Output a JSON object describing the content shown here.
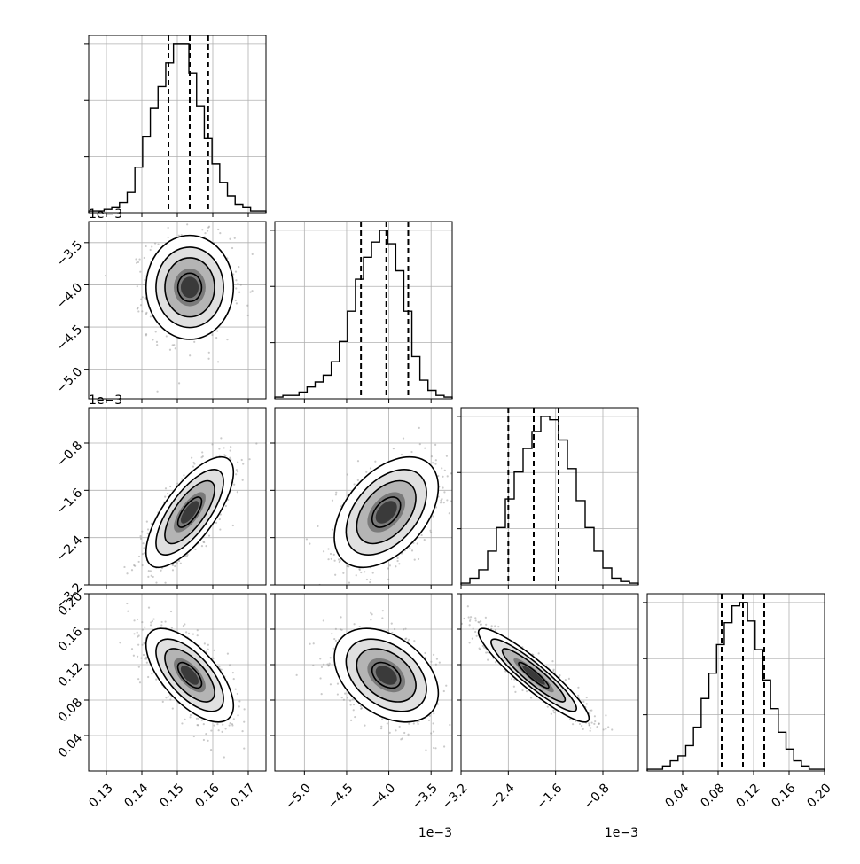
{
  "chart_data": {
    "type": "corner",
    "n_params": 4,
    "params": [
      {
        "id": "p0",
        "scale_label": "",
        "range": [
          0.125,
          0.175
        ],
        "ticks": [
          0.13,
          0.14,
          0.15,
          0.16,
          0.17
        ],
        "tick_labels": [
          "0.13",
          "0.14",
          "0.15",
          "0.16",
          "0.17"
        ],
        "quantiles": [
          0.1475,
          0.1535,
          0.1587
        ]
      },
      {
        "id": "p1",
        "scale_label": "1e−3",
        "range": [
          -5.35,
          -3.25
        ],
        "ticks": [
          -5.0,
          -4.5,
          -4.0,
          -3.5
        ],
        "tick_labels": [
          "−5.0",
          "−4.5",
          "−4.0",
          "−3.5"
        ],
        "quantiles": [
          -4.33,
          -4.03,
          -3.77
        ]
      },
      {
        "id": "p2",
        "scale_label": "1e−3",
        "range": [
          -3.2,
          -0.2
        ],
        "ticks": [
          -3.2,
          -2.4,
          -1.6,
          -0.8
        ],
        "tick_labels": [
          "−3.2",
          "−2.4",
          "−1.6",
          "−0.8"
        ],
        "quantiles": [
          -2.4,
          -1.97,
          -1.55
        ]
      },
      {
        "id": "p3",
        "scale_label": "",
        "range": [
          0.0,
          0.2
        ],
        "ticks": [
          0.04,
          0.08,
          0.12,
          0.16,
          0.2
        ],
        "tick_labels": [
          "0.04",
          "0.08",
          "0.12",
          "0.16",
          "0.20"
        ],
        "quantiles": [
          0.084,
          0.108,
          0.132
        ]
      }
    ],
    "hist_y_ticks": [
      0.3333,
      0.6667,
      1.0
    ],
    "histograms": [
      {
        "param": 0,
        "counts": [
          1,
          1,
          2,
          3,
          6,
          12,
          27,
          45,
          62,
          75,
          89,
          100,
          100,
          83,
          63,
          44,
          29,
          18,
          10,
          5,
          3,
          1,
          1
        ]
      },
      {
        "param": 1,
        "counts": [
          1,
          2,
          2,
          4,
          7,
          10,
          14,
          22,
          34,
          52,
          71,
          84,
          93,
          100,
          92,
          76,
          52,
          25,
          11,
          5,
          2,
          1
        ]
      },
      {
        "param": 2,
        "counts": [
          1,
          4,
          9,
          20,
          34,
          51,
          67,
          81,
          91,
          100,
          98,
          86,
          69,
          50,
          34,
          20,
          10,
          4,
          2,
          1
        ]
      },
      {
        "param": 3,
        "counts": [
          1,
          1,
          3,
          6,
          9,
          15,
          26,
          43,
          58,
          75,
          88,
          98,
          100,
          89,
          72,
          54,
          37,
          23,
          13,
          6,
          3,
          1,
          1
        ]
      }
    ],
    "joint_2d": [
      {
        "x_param": 0,
        "y_param": 1,
        "correlation": 0.0
      },
      {
        "x_param": 0,
        "y_param": 2,
        "correlation": 0.72
      },
      {
        "x_param": 1,
        "y_param": 2,
        "correlation": 0.45
      },
      {
        "x_param": 0,
        "y_param": 3,
        "correlation": -0.65
      },
      {
        "x_param": 1,
        "y_param": 3,
        "correlation": -0.38
      },
      {
        "x_param": 2,
        "y_param": 3,
        "correlation": -0.92
      }
    ],
    "grid": true,
    "colors": {
      "line": "#000000",
      "grid": "#b0b0b0",
      "scatter": "#8a8a8a"
    }
  }
}
